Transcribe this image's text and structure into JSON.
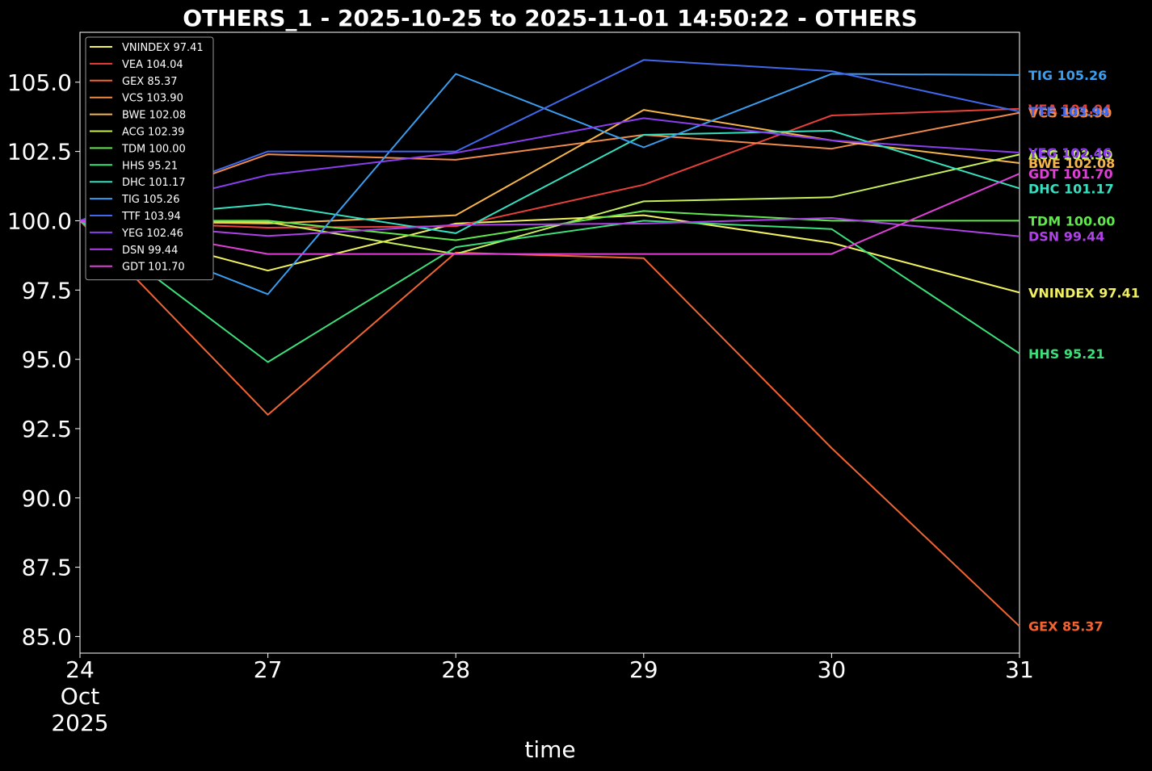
{
  "chart_data": {
    "type": "line",
    "title": "OTHERS_1 - 2025-10-25 to 2025-11-01 14:50:22 - OTHERS",
    "xlabel": "time",
    "ylabel": "",
    "x": [
      "2025-10-24",
      "2025-10-27",
      "2025-10-28",
      "2025-10-29",
      "2025-10-30",
      "2025-10-31"
    ],
    "x_tick_labels": [
      [
        "24",
        "Oct",
        "2025"
      ],
      [
        "27"
      ],
      [
        "28"
      ],
      [
        "29"
      ],
      [
        "30"
      ],
      [
        "31"
      ]
    ],
    "ylim": [
      84.4,
      106.8
    ],
    "y_ticks": [
      85.0,
      87.5,
      90.0,
      92.5,
      95.0,
      97.5,
      100.0,
      102.5,
      105.0
    ],
    "y_tick_labels": [
      "85.0",
      "87.5",
      "90.0",
      "92.5",
      "95.0",
      "97.5",
      "100.0",
      "102.5",
      "105.0"
    ],
    "grid": false,
    "legend_position": "top-left",
    "background": "#000000",
    "series": [
      {
        "name": "VNINDEX",
        "legend": "VNINDEX 97.41",
        "end_label": "VNINDEX 97.41",
        "color": "#f0f060",
        "values": [
          100.0,
          98.2,
          99.9,
          100.2,
          99.2,
          97.41
        ]
      },
      {
        "name": "VEA",
        "legend": "VEA 104.04",
        "end_label": "VEA 104.04",
        "color": "#e8403a",
        "values": [
          100.0,
          99.75,
          99.8,
          101.3,
          103.8,
          104.04
        ]
      },
      {
        "name": "GEX",
        "legend": "GEX 85.37",
        "end_label": "GEX 85.37",
        "color": "#f06432",
        "values": [
          100.0,
          93.0,
          98.85,
          98.65,
          91.8,
          85.37
        ]
      },
      {
        "name": "VCS",
        "legend": "VCS 103.90",
        "end_label": "VCS 103.90",
        "color": "#f08a4a",
        "values": [
          100.0,
          102.4,
          102.2,
          103.1,
          102.6,
          103.9
        ]
      },
      {
        "name": "BWE",
        "legend": "BWE 102.08",
        "end_label": "BWE 102.08",
        "color": "#f5b548",
        "values": [
          100.0,
          99.9,
          100.2,
          104.0,
          102.9,
          102.08
        ]
      },
      {
        "name": "ACG",
        "legend": "ACG 102.39",
        "end_label": "ACG 102.39",
        "color": "#c6ef5a",
        "values": [
          100.0,
          99.95,
          98.8,
          100.7,
          100.85,
          102.39
        ]
      },
      {
        "name": "TDM",
        "legend": "TDM 100.00",
        "end_label": "TDM 100.00",
        "color": "#5fe84b",
        "values": [
          100.0,
          100.0,
          99.3,
          100.35,
          100.0,
          100.0
        ]
      },
      {
        "name": "HHS",
        "legend": "HHS 95.21",
        "end_label": "HHS 95.21",
        "color": "#3ce07a",
        "values": [
          100.0,
          94.9,
          99.05,
          100.0,
          99.7,
          95.21
        ]
      },
      {
        "name": "DHC",
        "legend": "DHC 101.17",
        "end_label": "DHC 101.17",
        "color": "#35e0c0",
        "values": [
          100.0,
          100.6,
          99.55,
          103.1,
          103.25,
          101.17
        ]
      },
      {
        "name": "TIG",
        "legend": "TIG 105.26",
        "end_label": "TIG 105.26",
        "color": "#3a9ef0",
        "values": [
          100.0,
          97.35,
          105.3,
          102.65,
          105.3,
          105.26
        ]
      },
      {
        "name": "TTF",
        "legend": "TTF 103.94",
        "end_label": "TTF 103.94",
        "color": "#4068ec",
        "values": [
          100.0,
          102.5,
          102.5,
          105.8,
          105.4,
          103.94
        ]
      },
      {
        "name": "YEG",
        "legend": "YEG 102.46",
        "end_label": "YEG 102.46",
        "color": "#8a3ef0",
        "values": [
          100.0,
          101.65,
          102.45,
          103.7,
          102.9,
          102.46
        ]
      },
      {
        "name": "DSN",
        "legend": "DSN 99.44",
        "end_label": "DSN 99.44",
        "color": "#b040e8",
        "values": [
          100.0,
          99.45,
          99.85,
          99.9,
          100.1,
          99.44
        ]
      },
      {
        "name": "GDT",
        "legend": "GDT 101.70",
        "end_label": "GDT 101.70",
        "color": "#e040d8",
        "values": [
          100.0,
          98.8,
          98.8,
          98.8,
          98.8,
          101.7
        ]
      }
    ]
  }
}
